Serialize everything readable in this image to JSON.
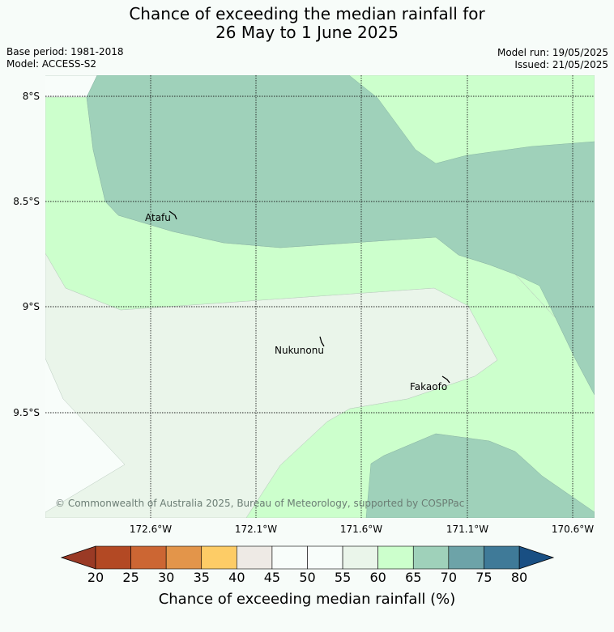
{
  "title": {
    "line1": "Chance of exceeding the median rainfall for",
    "line2": "26 May to 1 June 2025"
  },
  "meta": {
    "base_period": "Base period: 1981-2018",
    "model": "Model: ACCESS-S2",
    "model_run": "Model run: 19/05/2025",
    "issued": "Issued: 21/05/2025"
  },
  "map": {
    "latitudes": [
      "8°S",
      "8.5°S",
      "9°S",
      "9.5°S"
    ],
    "longitudes": [
      "172.6°W",
      "172.1°W",
      "171.6°W",
      "171.1°W",
      "170.6°W"
    ],
    "places": [
      "Atafu",
      "Nukunonu",
      "Fakaofo"
    ],
    "copyright": "© Commonwealth of Australia 2025, Bureau of Meteorology, supported by COSPPac"
  },
  "colorbar": {
    "ticks": [
      "20",
      "25",
      "30",
      "35",
      "40",
      "45",
      "50",
      "55",
      "60",
      "65",
      "70",
      "75",
      "80"
    ],
    "label": "Chance of exceeding median rainfall (%)",
    "low_extend_color": "#9a3a25",
    "high_extend_color": "#194f83",
    "colors": [
      "#b34924",
      "#cc6633",
      "#e3954a",
      "#fdcc66",
      "#eeeae5",
      "#f8fdfa",
      "#f8fdfa",
      "#eaf5ea",
      "#ccffcc",
      "#9fd1ba",
      "#6da3a8",
      "#3f7a98"
    ]
  },
  "fill_colors": {
    "light_green": "#ccffcc",
    "teal": "#9fd1ba",
    "pale_green": "#eaf5ea",
    "white": "#f8fdfa"
  }
}
